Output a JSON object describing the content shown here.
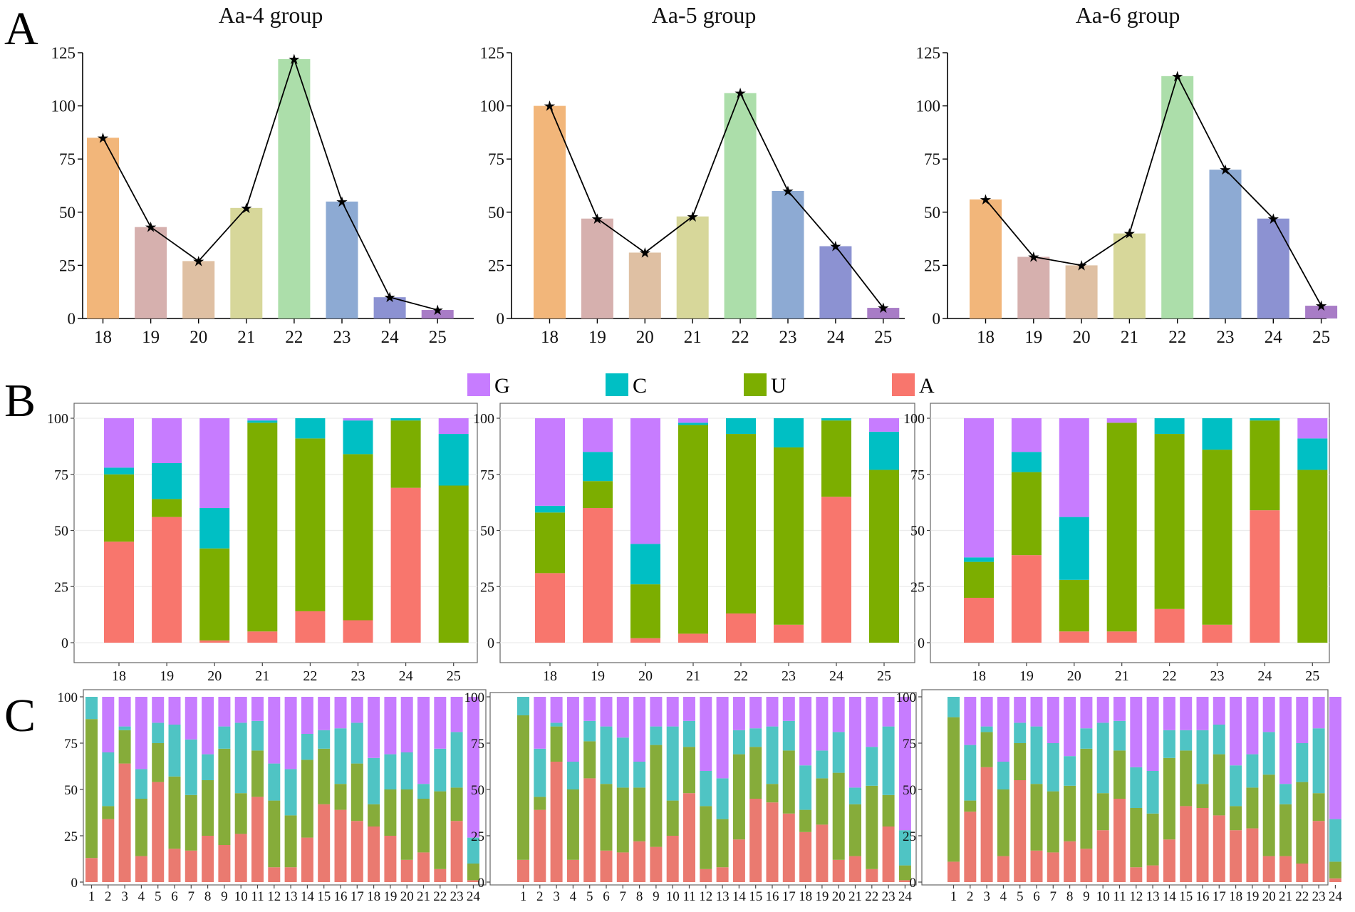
{
  "panel_labels": [
    "A",
    "B",
    "C"
  ],
  "colors": {
    "lengths": [
      "#f2b67a",
      "#d6b0ae",
      "#dfc0a3",
      "#d7d79a",
      "#acdeaa",
      "#8daad3",
      "#8c92d2",
      "#a87cc6"
    ],
    "G": "#c77cff",
    "C": "#00bfc4",
    "U": "#7cae00",
    "A": "#f8766d",
    "posG": "#c77cff",
    "posC": "#4fc4c4",
    "posU": "#86ac3a",
    "posA": "#ea7a70",
    "line": "#000000"
  },
  "legend": [
    {
      "key": "G",
      "label": "G"
    },
    {
      "key": "C",
      "label": "C"
    },
    {
      "key": "U",
      "label": "U"
    },
    {
      "key": "A",
      "label": "A"
    }
  ],
  "chart_data": [
    {
      "id": "A1",
      "panel": "A",
      "type": "bar",
      "title": "Aa-4 group",
      "categories": [
        "18",
        "19",
        "20",
        "21",
        "22",
        "23",
        "24",
        "25"
      ],
      "values": [
        85,
        43,
        27,
        52,
        122,
        55,
        10,
        4
      ],
      "line_overlay": true,
      "ylim": [
        0,
        125
      ],
      "yticks": [
        0,
        25,
        50,
        75,
        100,
        125
      ],
      "xlabel": "",
      "ylabel": ""
    },
    {
      "id": "A2",
      "panel": "A",
      "type": "bar",
      "title": "Aa-5 group",
      "categories": [
        "18",
        "19",
        "20",
        "21",
        "22",
        "23",
        "24",
        "25"
      ],
      "values": [
        100,
        47,
        31,
        48,
        106,
        60,
        34,
        5
      ],
      "line_overlay": true,
      "ylim": [
        0,
        125
      ],
      "yticks": [
        0,
        25,
        50,
        75,
        100,
        125
      ],
      "xlabel": "",
      "ylabel": ""
    },
    {
      "id": "A3",
      "panel": "A",
      "type": "bar",
      "title": "Aa-6 group",
      "categories": [
        "18",
        "19",
        "20",
        "21",
        "22",
        "23",
        "24",
        "25"
      ],
      "values": [
        56,
        29,
        25,
        40,
        114,
        70,
        47,
        6
      ],
      "line_overlay": true,
      "ylim": [
        0,
        125
      ],
      "yticks": [
        0,
        25,
        50,
        75,
        100,
        125
      ],
      "xlabel": "",
      "ylabel": ""
    },
    {
      "id": "B1",
      "panel": "B",
      "type": "stacked-bar",
      "title": "",
      "categories": [
        "18",
        "19",
        "20",
        "21",
        "22",
        "23",
        "24",
        "25"
      ],
      "stack_order": [
        "A",
        "U",
        "C",
        "G"
      ],
      "series": [
        {
          "name": "A",
          "values": [
            45,
            56,
            1,
            5,
            14,
            10,
            69,
            0
          ]
        },
        {
          "name": "U",
          "values": [
            30,
            8,
            41,
            93,
            77,
            74,
            30,
            70
          ]
        },
        {
          "name": "C",
          "values": [
            3,
            16,
            18,
            1,
            9,
            15,
            1,
            23
          ]
        },
        {
          "name": "G",
          "values": [
            22,
            20,
            40,
            1,
            0,
            1,
            0,
            7
          ]
        }
      ],
      "ylim": [
        0,
        100
      ],
      "yticks": [
        0,
        25,
        50,
        75,
        100
      ]
    },
    {
      "id": "B2",
      "panel": "B",
      "type": "stacked-bar",
      "title": "",
      "categories": [
        "18",
        "19",
        "20",
        "21",
        "22",
        "23",
        "24",
        "25"
      ],
      "stack_order": [
        "A",
        "U",
        "C",
        "G"
      ],
      "series": [
        {
          "name": "A",
          "values": [
            31,
            60,
            2,
            4,
            13,
            8,
            65,
            0
          ]
        },
        {
          "name": "U",
          "values": [
            27,
            12,
            24,
            93,
            80,
            79,
            34,
            77
          ]
        },
        {
          "name": "C",
          "values": [
            3,
            13,
            18,
            1,
            7,
            13,
            1,
            17
          ]
        },
        {
          "name": "G",
          "values": [
            39,
            15,
            56,
            2,
            0,
            0,
            0,
            6
          ]
        }
      ],
      "ylim": [
        0,
        100
      ],
      "yticks": [
        0,
        25,
        50,
        75,
        100
      ]
    },
    {
      "id": "B3",
      "panel": "B",
      "type": "stacked-bar",
      "title": "",
      "categories": [
        "18",
        "19",
        "20",
        "21",
        "22",
        "23",
        "24",
        "25"
      ],
      "stack_order": [
        "A",
        "U",
        "C",
        "G"
      ],
      "series": [
        {
          "name": "A",
          "values": [
            20,
            39,
            5,
            5,
            15,
            8,
            59,
            0
          ]
        },
        {
          "name": "U",
          "values": [
            16,
            37,
            23,
            93,
            78,
            78,
            40,
            77
          ]
        },
        {
          "name": "C",
          "values": [
            2,
            9,
            28,
            0,
            7,
            14,
            1,
            14
          ]
        },
        {
          "name": "G",
          "values": [
            62,
            15,
            44,
            2,
            0,
            0,
            0,
            9
          ]
        }
      ],
      "ylim": [
        0,
        100
      ],
      "yticks": [
        0,
        25,
        50,
        75,
        100
      ]
    },
    {
      "id": "C1",
      "panel": "C",
      "type": "stacked-bar",
      "title": "",
      "categories": [
        "1",
        "2",
        "3",
        "4",
        "5",
        "6",
        "7",
        "8",
        "9",
        "10",
        "11",
        "12",
        "13",
        "14",
        "15",
        "16",
        "17",
        "18",
        "19",
        "20",
        "21",
        "22",
        "23",
        "24"
      ],
      "stack_order": [
        "A",
        "U",
        "C",
        "G"
      ],
      "series": [
        {
          "name": "A",
          "values": [
            13,
            34,
            64,
            14,
            54,
            18,
            17,
            25,
            20,
            26,
            46,
            8,
            8,
            24,
            42,
            39,
            33,
            30,
            25,
            12,
            16,
            7,
            33,
            1
          ]
        },
        {
          "name": "U",
          "values": [
            75,
            7,
            18,
            31,
            21,
            39,
            30,
            30,
            52,
            22,
            25,
            36,
            28,
            42,
            30,
            14,
            31,
            12,
            25,
            38,
            29,
            42,
            18,
            9
          ]
        },
        {
          "name": "C",
          "values": [
            12,
            29,
            2,
            16,
            11,
            28,
            30,
            14,
            12,
            38,
            16,
            20,
            25,
            14,
            10,
            30,
            22,
            25,
            19,
            20,
            8,
            23,
            30,
            14
          ]
        },
        {
          "name": "G",
          "values": [
            0,
            30,
            16,
            39,
            14,
            15,
            23,
            31,
            16,
            14,
            13,
            36,
            39,
            20,
            18,
            17,
            14,
            33,
            31,
            30,
            47,
            28,
            19,
            76
          ]
        }
      ],
      "ylim": [
        0,
        100
      ],
      "yticks": [
        0,
        25,
        50,
        75,
        100
      ]
    },
    {
      "id": "C2",
      "panel": "C",
      "type": "stacked-bar",
      "title": "",
      "categories": [
        "1",
        "2",
        "3",
        "4",
        "5",
        "6",
        "7",
        "8",
        "9",
        "10",
        "11",
        "12",
        "13",
        "14",
        "15",
        "16",
        "17",
        "18",
        "19",
        "20",
        "21",
        "22",
        "23",
        "24"
      ],
      "stack_order": [
        "A",
        "U",
        "C",
        "G"
      ],
      "series": [
        {
          "name": "A",
          "values": [
            12,
            39,
            65,
            12,
            56,
            17,
            16,
            22,
            19,
            25,
            48,
            7,
            8,
            23,
            45,
            43,
            37,
            27,
            31,
            12,
            14,
            7,
            30,
            1
          ]
        },
        {
          "name": "U",
          "values": [
            78,
            7,
            19,
            38,
            20,
            36,
            35,
            29,
            55,
            19,
            25,
            34,
            26,
            46,
            28,
            10,
            34,
            12,
            25,
            47,
            28,
            45,
            17,
            8
          ]
        },
        {
          "name": "C",
          "values": [
            10,
            26,
            2,
            15,
            11,
            31,
            27,
            14,
            10,
            40,
            14,
            19,
            22,
            13,
            10,
            31,
            16,
            24,
            15,
            22,
            9,
            21,
            37,
            19
          ]
        },
        {
          "name": "G",
          "values": [
            0,
            28,
            14,
            35,
            13,
            16,
            22,
            35,
            16,
            16,
            13,
            40,
            44,
            18,
            17,
            16,
            13,
            37,
            29,
            19,
            49,
            27,
            16,
            72
          ]
        }
      ],
      "ylim": [
        0,
        100
      ],
      "yticks": [
        0,
        25,
        50,
        75,
        100
      ]
    },
    {
      "id": "C3",
      "panel": "C",
      "type": "stacked-bar",
      "title": "",
      "categories": [
        "1",
        "2",
        "3",
        "4",
        "5",
        "6",
        "7",
        "8",
        "9",
        "10",
        "11",
        "12",
        "13",
        "14",
        "15",
        "16",
        "17",
        "18",
        "19",
        "20",
        "21",
        "22",
        "23",
        "24"
      ],
      "stack_order": [
        "A",
        "U",
        "C",
        "G"
      ],
      "series": [
        {
          "name": "A",
          "values": [
            11,
            38,
            62,
            14,
            55,
            17,
            16,
            22,
            18,
            28,
            45,
            8,
            9,
            23,
            41,
            40,
            36,
            28,
            29,
            14,
            14,
            10,
            33,
            2
          ]
        },
        {
          "name": "U",
          "values": [
            78,
            6,
            19,
            36,
            20,
            36,
            33,
            30,
            54,
            20,
            26,
            32,
            28,
            44,
            30,
            13,
            33,
            13,
            22,
            44,
            28,
            44,
            15,
            9
          ]
        },
        {
          "name": "C",
          "values": [
            11,
            30,
            3,
            15,
            11,
            31,
            26,
            16,
            11,
            38,
            16,
            22,
            23,
            15,
            11,
            29,
            16,
            22,
            18,
            23,
            11,
            21,
            35,
            23
          ]
        },
        {
          "name": "G",
          "values": [
            0,
            26,
            16,
            35,
            14,
            16,
            25,
            32,
            17,
            14,
            13,
            38,
            40,
            18,
            18,
            18,
            15,
            37,
            31,
            19,
            47,
            25,
            17,
            66
          ]
        }
      ],
      "ylim": [
        0,
        100
      ],
      "yticks": [
        0,
        25,
        50,
        75,
        100
      ]
    }
  ]
}
